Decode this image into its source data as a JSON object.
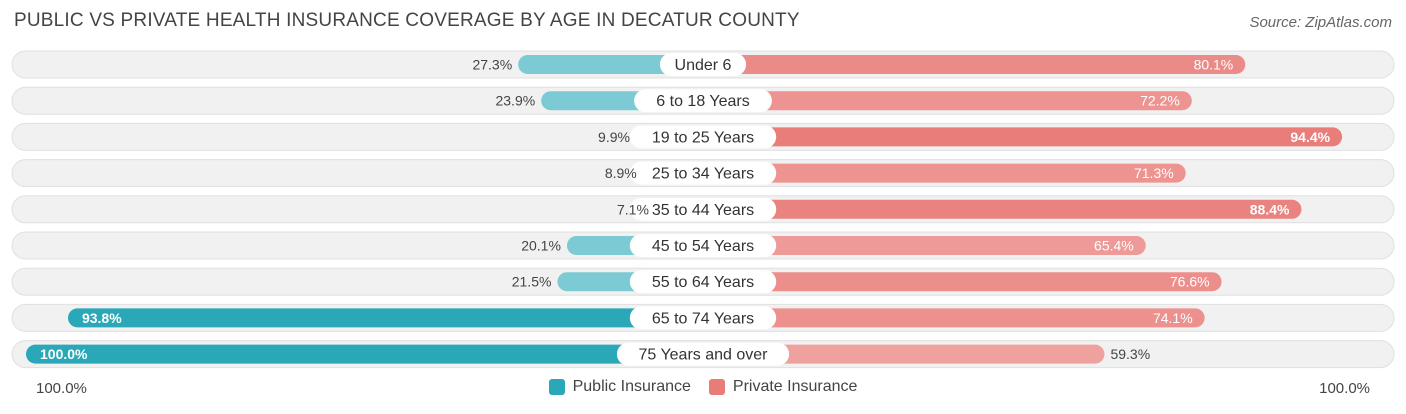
{
  "header": {
    "title": "PUBLIC VS PRIVATE HEALTH INSURANCE COVERAGE BY AGE IN DECATUR COUNTY",
    "source": "Source: ZipAtlas.com"
  },
  "axis": {
    "left_label": "100.0%",
    "right_label": "100.0%"
  },
  "legend": {
    "public_label": "Public Insurance",
    "private_label": "Private Insurance"
  },
  "colors": {
    "public": "#7ccad3",
    "public_strong": "#2aa8b8",
    "private": "#f0a5a3",
    "private_strong": "#e87c78",
    "row_bg": "#f1f1f1",
    "row_border": "#e0e0e0"
  },
  "chart_data": {
    "type": "bar",
    "orientation": "horizontal-diverging",
    "title": "PUBLIC VS PRIVATE HEALTH INSURANCE COVERAGE BY AGE IN DECATUR COUNTY",
    "xlim": [
      0,
      100
    ],
    "categories": [
      "Under 6",
      "6 to 18 Years",
      "19 to 25 Years",
      "25 to 34 Years",
      "35 to 44 Years",
      "45 to 54 Years",
      "55 to 64 Years",
      "65 to 74 Years",
      "75 Years and over"
    ],
    "series": [
      {
        "name": "Public Insurance",
        "values": [
          27.3,
          23.9,
          9.9,
          8.9,
          7.1,
          20.1,
          21.5,
          93.8,
          100.0
        ],
        "labels": [
          "27.3%",
          "23.9%",
          "9.9%",
          "8.9%",
          "7.1%",
          "20.1%",
          "21.5%",
          "93.8%",
          "100.0%"
        ]
      },
      {
        "name": "Private Insurance",
        "values": [
          80.1,
          72.2,
          94.4,
          71.3,
          88.4,
          65.4,
          76.6,
          74.1,
          59.3
        ],
        "labels": [
          "80.1%",
          "72.2%",
          "94.4%",
          "71.3%",
          "88.4%",
          "65.4%",
          "76.6%",
          "74.1%",
          "59.3%"
        ]
      }
    ],
    "legend_position": "bottom-center"
  }
}
